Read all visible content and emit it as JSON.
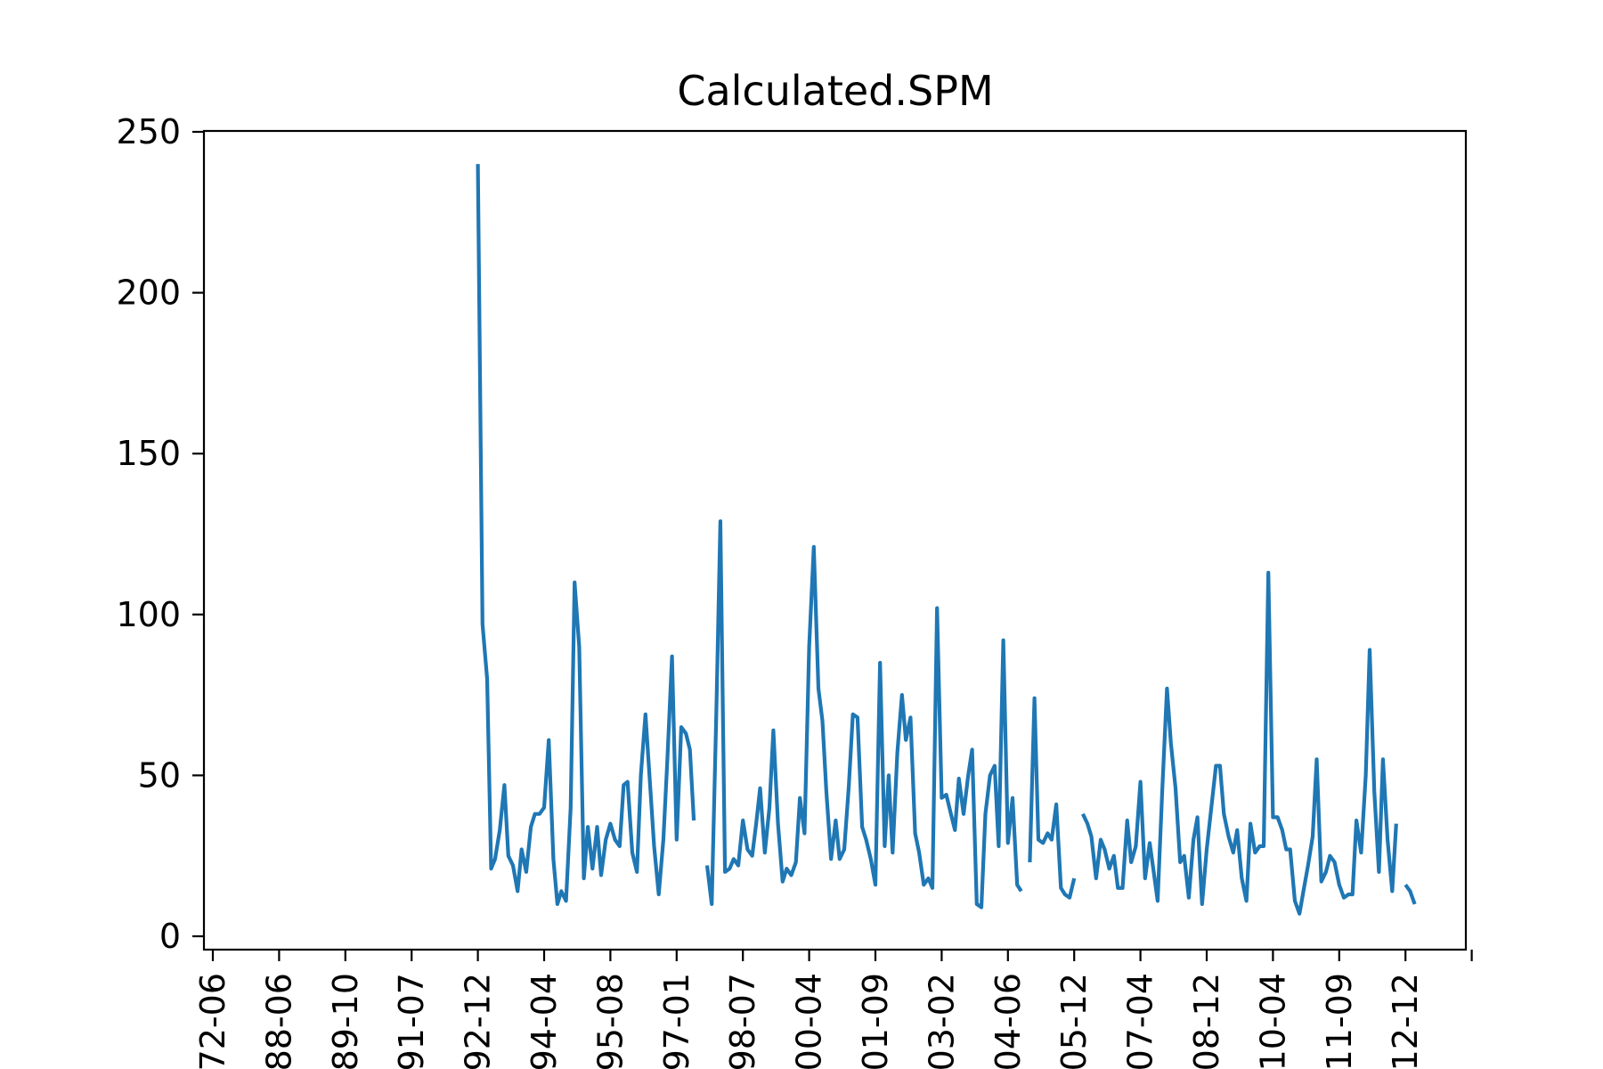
{
  "chart_data": {
    "type": "line",
    "title": "Calculated.SPM",
    "xlabel": "",
    "ylabel": "",
    "ylim": [
      0,
      250
    ],
    "yticks": [
      0,
      50,
      100,
      150,
      200,
      250
    ],
    "x_tick_labels": [
      "72-06",
      "88-06",
      "89-10",
      "91-07",
      "92-12",
      "94-04",
      "95-08",
      "97-01",
      "98-07",
      "00-04",
      "01-09",
      "03-02",
      "04-06",
      "05-12",
      "07-04",
      "08-12",
      "10-04",
      "11-09",
      "12-12"
    ],
    "grid": false,
    "legend": "none",
    "color": "#1f77b4",
    "series": [
      {
        "segments": [
          [
            [
              4.0,
              240
            ],
            [
              4.07,
              97
            ],
            [
              4.14,
              80
            ],
            [
              4.2,
              21
            ],
            [
              4.26,
              24
            ],
            [
              4.33,
              33
            ],
            [
              4.4,
              47
            ],
            [
              4.46,
              25
            ],
            [
              4.53,
              22
            ],
            [
              4.6,
              14
            ],
            [
              4.66,
              27
            ],
            [
              4.73,
              20
            ],
            [
              4.8,
              34
            ],
            [
              4.86,
              38
            ],
            [
              4.93,
              38
            ],
            [
              5.0,
              40
            ],
            [
              5.07,
              61
            ],
            [
              5.14,
              24
            ],
            [
              5.2,
              10
            ],
            [
              5.26,
              14
            ],
            [
              5.33,
              11
            ],
            [
              5.4,
              40
            ],
            [
              5.46,
              110
            ],
            [
              5.53,
              90
            ],
            [
              5.6,
              18
            ],
            [
              5.66,
              34
            ],
            [
              5.73,
              21
            ],
            [
              5.8,
              34
            ],
            [
              5.86,
              19
            ],
            [
              5.93,
              30
            ],
            [
              6.0,
              35
            ],
            [
              6.07,
              30
            ],
            [
              6.14,
              28
            ],
            [
              6.2,
              47
            ],
            [
              6.26,
              48
            ],
            [
              6.33,
              26
            ],
            [
              6.4,
              20
            ],
            [
              6.46,
              50
            ],
            [
              6.53,
              69
            ],
            [
              6.6,
              47
            ],
            [
              6.66,
              28
            ],
            [
              6.73,
              13
            ],
            [
              6.8,
              30
            ],
            [
              6.86,
              55
            ],
            [
              6.93,
              87
            ],
            [
              7.0,
              30
            ],
            [
              7.07,
              65
            ],
            [
              7.14,
              63
            ],
            [
              7.2,
              58
            ],
            [
              7.26,
              36
            ]
          ],
          [
            [
              7.46,
              22
            ],
            [
              7.53,
              10
            ],
            [
              7.6,
              70
            ],
            [
              7.66,
              129
            ],
            [
              7.73,
              20
            ],
            [
              7.8,
              21
            ],
            [
              7.86,
              24
            ],
            [
              7.93,
              22
            ],
            [
              8.0,
              36
            ],
            [
              8.07,
              27
            ],
            [
              8.14,
              25
            ],
            [
              8.2,
              35
            ],
            [
              8.26,
              46
            ],
            [
              8.33,
              26
            ],
            [
              8.4,
              40
            ],
            [
              8.46,
              64
            ],
            [
              8.53,
              35
            ],
            [
              8.6,
              17
            ],
            [
              8.66,
              21
            ],
            [
              8.73,
              19
            ],
            [
              8.8,
              23
            ],
            [
              8.86,
              43
            ],
            [
              8.93,
              32
            ],
            [
              9.0,
              90
            ],
            [
              9.07,
              121
            ],
            [
              9.14,
              77
            ],
            [
              9.2,
              67
            ],
            [
              9.26,
              45
            ],
            [
              9.33,
              24
            ],
            [
              9.4,
              36
            ],
            [
              9.46,
              24
            ],
            [
              9.53,
              27
            ],
            [
              9.6,
              47
            ],
            [
              9.66,
              69
            ],
            [
              9.73,
              68
            ],
            [
              9.8,
              34
            ],
            [
              9.86,
              30
            ],
            [
              9.93,
              24
            ],
            [
              10.0,
              16
            ],
            [
              10.07,
              85
            ],
            [
              10.14,
              28
            ],
            [
              10.2,
              50
            ],
            [
              10.26,
              26
            ],
            [
              10.33,
              57
            ],
            [
              10.4,
              75
            ],
            [
              10.46,
              61
            ],
            [
              10.53,
              68
            ],
            [
              10.6,
              32
            ],
            [
              10.66,
              26
            ],
            [
              10.73,
              16
            ],
            [
              10.8,
              18
            ],
            [
              10.86,
              15
            ],
            [
              10.93,
              102
            ],
            [
              11.0,
              43
            ],
            [
              11.07,
              44
            ],
            [
              11.14,
              38
            ],
            [
              11.2,
              33
            ],
            [
              11.26,
              49
            ],
            [
              11.33,
              38
            ],
            [
              11.4,
              50
            ],
            [
              11.46,
              58
            ],
            [
              11.53,
              10
            ],
            [
              11.6,
              9
            ],
            [
              11.66,
              38
            ],
            [
              11.73,
              50
            ],
            [
              11.8,
              53
            ],
            [
              11.86,
              28
            ],
            [
              11.93,
              92
            ],
            [
              12.0,
              29
            ],
            [
              12.07,
              43
            ],
            [
              12.14,
              16
            ],
            [
              12.2,
              14
            ]
          ],
          [
            [
              12.33,
              23
            ],
            [
              12.4,
              74
            ],
            [
              12.46,
              30
            ],
            [
              12.53,
              29
            ],
            [
              12.6,
              32
            ],
            [
              12.66,
              30
            ],
            [
              12.73,
              41
            ],
            [
              12.8,
              15
            ],
            [
              12.86,
              13
            ],
            [
              12.93,
              12
            ],
            [
              13.0,
              18
            ]
          ],
          [
            [
              13.13,
              38
            ],
            [
              13.2,
              35
            ],
            [
              13.26,
              31
            ],
            [
              13.33,
              18
            ],
            [
              13.4,
              30
            ],
            [
              13.46,
              27
            ],
            [
              13.53,
              21
            ],
            [
              13.6,
              25
            ],
            [
              13.66,
              15
            ],
            [
              13.73,
              15
            ],
            [
              13.8,
              36
            ],
            [
              13.86,
              23
            ],
            [
              13.93,
              28
            ],
            [
              14.0,
              48
            ],
            [
              14.07,
              18
            ],
            [
              14.14,
              29
            ],
            [
              14.2,
              20
            ],
            [
              14.26,
              11
            ],
            [
              14.33,
              46
            ],
            [
              14.4,
              77
            ],
            [
              14.46,
              60
            ],
            [
              14.53,
              46
            ],
            [
              14.6,
              23
            ],
            [
              14.66,
              25
            ],
            [
              14.73,
              12
            ],
            [
              14.8,
              30
            ],
            [
              14.86,
              37
            ],
            [
              14.93,
              10
            ],
            [
              15.0,
              27
            ],
            [
              15.07,
              40
            ],
            [
              15.14,
              53
            ],
            [
              15.2,
              53
            ],
            [
              15.26,
              38
            ],
            [
              15.33,
              31
            ],
            [
              15.4,
              26
            ],
            [
              15.46,
              33
            ],
            [
              15.53,
              18
            ],
            [
              15.6,
              11
            ],
            [
              15.66,
              35
            ],
            [
              15.73,
              26
            ],
            [
              15.8,
              28
            ],
            [
              15.86,
              28
            ],
            [
              15.93,
              113
            ],
            [
              16.0,
              37
            ],
            [
              16.07,
              37
            ],
            [
              16.14,
              33
            ],
            [
              16.2,
              27
            ],
            [
              16.26,
              27
            ],
            [
              16.33,
              11
            ],
            [
              16.4,
              7
            ],
            [
              16.46,
              14
            ],
            [
              16.53,
              22
            ],
            [
              16.6,
              31
            ],
            [
              16.66,
              55
            ],
            [
              16.73,
              17
            ],
            [
              16.8,
              20
            ],
            [
              16.86,
              25
            ],
            [
              16.93,
              23
            ],
            [
              17.0,
              16
            ],
            [
              17.07,
              12
            ],
            [
              17.14,
              13
            ],
            [
              17.2,
              13
            ],
            [
              17.26,
              36
            ],
            [
              17.33,
              26
            ],
            [
              17.4,
              50
            ],
            [
              17.46,
              89
            ],
            [
              17.53,
              45
            ],
            [
              17.6,
              20
            ],
            [
              17.66,
              55
            ],
            [
              17.73,
              30
            ],
            [
              17.8,
              14
            ],
            [
              17.86,
              35
            ]
          ],
          [
            [
              18.0,
              16
            ],
            [
              18.07,
              14
            ],
            [
              18.14,
              10
            ]
          ]
        ]
      }
    ]
  }
}
